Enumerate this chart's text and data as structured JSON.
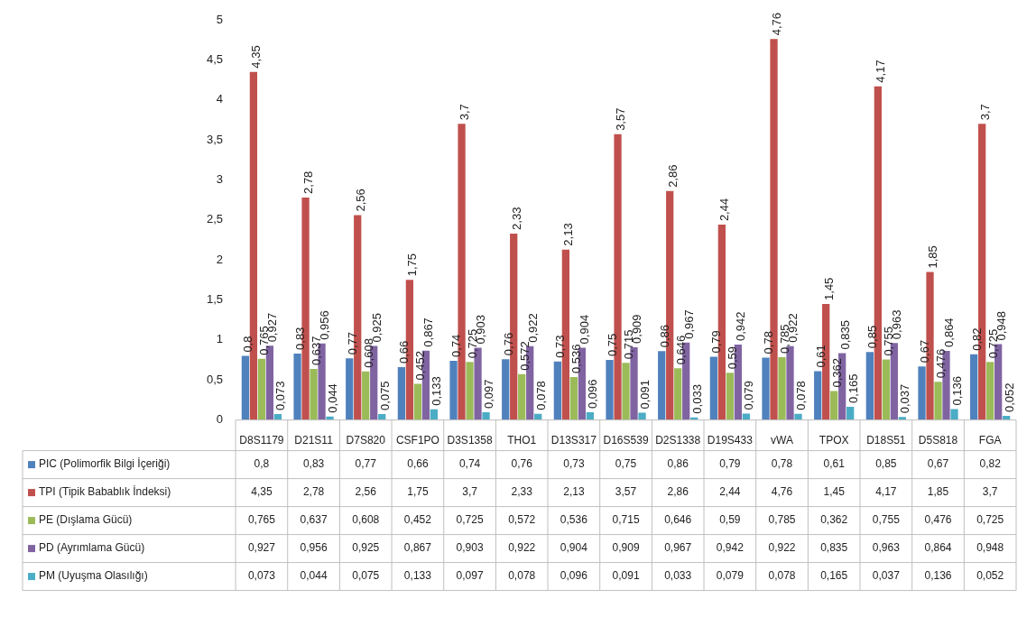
{
  "chart_data": {
    "type": "bar",
    "categories": [
      "D8S1179",
      "D21S11",
      "D7S820",
      "CSF1PO",
      "D3S1358",
      "THO1",
      "D13S317",
      "D16S539",
      "D2S1338",
      "D19S433",
      "vWA",
      "TPOX",
      "D18S51",
      "D5S818",
      "FGA"
    ],
    "series": [
      {
        "name": "PIC (Polimorfik Bilgi İçeriği)",
        "color": "#4f81bd",
        "values": [
          0.8,
          0.83,
          0.77,
          0.66,
          0.74,
          0.76,
          0.73,
          0.75,
          0.86,
          0.79,
          0.78,
          0.61,
          0.85,
          0.67,
          0.82
        ],
        "value_labels": [
          "0,8",
          "0,83",
          "0,77",
          "0,66",
          "0,74",
          "0,76",
          "0,73",
          "0,75",
          "0,86",
          "0,79",
          "0,78",
          "0,61",
          "0,85",
          "0,67",
          "0,82"
        ]
      },
      {
        "name": "TPI (Tipik Babablık İndeksi)",
        "color": "#c0504d",
        "values": [
          4.35,
          2.78,
          2.56,
          1.75,
          3.7,
          2.33,
          2.13,
          3.57,
          2.86,
          2.44,
          4.76,
          1.45,
          4.17,
          1.85,
          3.7
        ],
        "value_labels": [
          "4,35",
          "2,78",
          "2,56",
          "1,75",
          "3,7",
          "2,33",
          "2,13",
          "3,57",
          "2,86",
          "2,44",
          "4,76",
          "1,45",
          "4,17",
          "1,85",
          "3,7"
        ]
      },
      {
        "name": "PE (Dışlama Gücü)",
        "color": "#9bbb59",
        "values": [
          0.765,
          0.637,
          0.608,
          0.452,
          0.725,
          0.572,
          0.536,
          0.715,
          0.646,
          0.59,
          0.785,
          0.362,
          0.755,
          0.476,
          0.725
        ],
        "value_labels": [
          "0,765",
          "0,637",
          "0,608",
          "0,452",
          "0,725",
          "0,572",
          "0,536",
          "0,715",
          "0,646",
          "0,59",
          "0,785",
          "0,362",
          "0,755",
          "0,476",
          "0,725"
        ]
      },
      {
        "name": "PD (Ayrımlama Gücü)",
        "color": "#8064a2",
        "values": [
          0.927,
          0.956,
          0.925,
          0.867,
          0.903,
          0.922,
          0.904,
          0.909,
          0.967,
          0.942,
          0.922,
          0.835,
          0.963,
          0.864,
          0.948
        ],
        "value_labels": [
          "0,927",
          "0,956",
          "0,925",
          "0,867",
          "0,903",
          "0,922",
          "0,904",
          "0,909",
          "0,967",
          "0,942",
          "0,922",
          "0,835",
          "0,963",
          "0,864",
          "0,948"
        ]
      },
      {
        "name": "PM (Uyuşma Olasılığı)",
        "color": "#4bacc6",
        "values": [
          0.073,
          0.044,
          0.075,
          0.133,
          0.097,
          0.078,
          0.096,
          0.091,
          0.033,
          0.079,
          0.078,
          0.165,
          0.037,
          0.136,
          0.052
        ],
        "value_labels": [
          "0,073",
          "0,044",
          "0,075",
          "0,133",
          "0,097",
          "0,078",
          "0,096",
          "0,091",
          "0,033",
          "0,079",
          "0,078",
          "0,165",
          "0,037",
          "0,136",
          "0,052"
        ]
      }
    ],
    "ylim": [
      0,
      5
    ],
    "yticks": [
      0,
      {
        "value": 0.5,
        "label": "0,5"
      },
      1,
      {
        "value": 1.5,
        "label": "1,5"
      },
      2,
      {
        "value": 2.5,
        "label": "2,5"
      },
      3,
      {
        "value": 3.5,
        "label": "3,5"
      },
      4,
      {
        "value": 4.5,
        "label": "4,5"
      },
      5
    ],
    "grid": false,
    "legend": "bottom left"
  }
}
